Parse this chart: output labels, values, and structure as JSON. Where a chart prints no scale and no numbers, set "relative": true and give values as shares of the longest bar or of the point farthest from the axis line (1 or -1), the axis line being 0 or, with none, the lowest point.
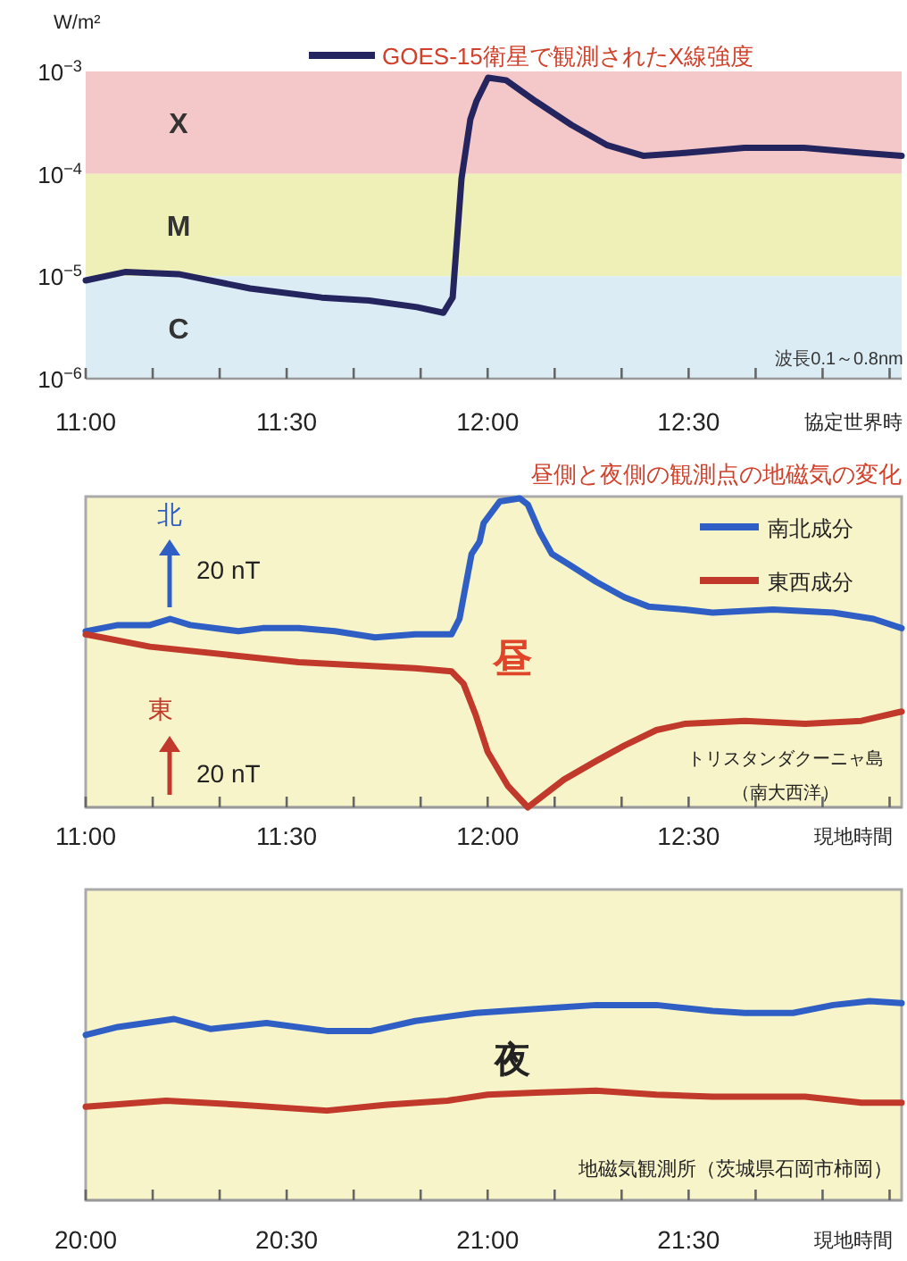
{
  "chart_data": [
    {
      "type": "line",
      "ylabel": "W/m²",
      "xlabel": "協定世界時",
      "log": true,
      "ylim": [
        1e-06,
        0.001
      ],
      "yticks": [
        {
          "value": 1e-06,
          "label": "10$^{−6}$"
        },
        {
          "value": 1e-05,
          "label": "10$^{−5}$"
        },
        {
          "value": 0.0001,
          "label": "10$^{−4}$"
        },
        {
          "value": 0.001,
          "label": "10$^{−3}$"
        }
      ],
      "xlim": [
        11,
        13.03
      ],
      "xticks": [
        {
          "value": 11,
          "label": "11:00"
        },
        {
          "value": 11.1667,
          "label": null
        },
        {
          "value": 11.3333,
          "label": null
        },
        {
          "value": 11.5,
          "label": "11:30"
        },
        {
          "value": 11.6667,
          "label": null
        },
        {
          "value": 11.8333,
          "label": null
        },
        {
          "value": 12,
          "label": "12:00"
        },
        {
          "value": 12.1667,
          "label": null
        },
        {
          "value": 12.3333,
          "label": null
        },
        {
          "value": 12.5,
          "label": "12:30"
        },
        {
          "value": 12.6667,
          "label": null
        },
        {
          "value": 12.8333,
          "label": null
        },
        {
          "value": 13,
          "label": null
        }
      ],
      "bands": [
        {
          "axis": "y",
          "from": 0.0001,
          "to": 0.001,
          "label": "X",
          "color": "#f4c8c8"
        },
        {
          "axis": "y",
          "from": 1e-05,
          "to": 0.0001,
          "label": "M",
          "color": "#eef0b8"
        },
        {
          "axis": "y",
          "from": 1e-06,
          "to": 1e-05,
          "label": "C",
          "color": "#dcecf4"
        }
      ],
      "legend": "top right",
      "grid": false,
      "marker": "none",
      "line_style": "solid",
      "annotations": [
        "波長0.1～0.8nm"
      ],
      "series": [
        {
          "name": "GOES-15衛星で観測されたX線強度",
          "color": "#24245e",
          "x": [
            11.0,
            11.098,
            11.231,
            11.409,
            11.587,
            11.705,
            11.824,
            11.89,
            11.913,
            11.935,
            11.957,
            11.972,
            12.001,
            12.046,
            12.12,
            12.209,
            12.298,
            12.387,
            12.49,
            12.639,
            12.787,
            12.935,
            13.03
          ],
          "values": [
            9.1e-06,
            1.1e-05,
            1.05e-05,
            7.6e-06,
            6.2e-06,
            5.8e-06,
            5e-06,
            4.4e-06,
            6.2e-06,
            9e-05,
            0.00034,
            0.00051,
            0.00087,
            0.00082,
            0.00051,
            0.0003,
            0.00019,
            0.00015,
            0.00016,
            0.00018,
            0.00018,
            0.00016,
            0.00015
          ]
        }
      ]
    },
    {
      "type": "line",
      "title": "昼側と夜側の観測点の地磁気の変化",
      "xlabel": "現地時間",
      "relative": true,
      "xlim": [
        11,
        13.03
      ],
      "xticks": [
        {
          "value": 11,
          "label": "11:00"
        },
        {
          "value": 11.1667,
          "label": null
        },
        {
          "value": 11.3333,
          "label": null
        },
        {
          "value": 11.5,
          "label": "11:30"
        },
        {
          "value": 11.6667,
          "label": null
        },
        {
          "value": 11.8333,
          "label": null
        },
        {
          "value": 12,
          "label": "12:00"
        },
        {
          "value": 12.1667,
          "label": null
        },
        {
          "value": 12.3333,
          "label": null
        },
        {
          "value": 12.5,
          "label": "12:30"
        },
        {
          "value": 12.6667,
          "label": null
        },
        {
          "value": 12.8333,
          "label": null
        },
        {
          "value": 13,
          "label": null
        }
      ],
      "legend": "top right",
      "grid": false,
      "marker": "none",
      "line_style": "solid",
      "annotations": [
        "北",
        "20 nT",
        "東",
        "20 nT",
        "昼",
        "トリスタンダクーニャ島",
        "（南大西洋）"
      ],
      "series": [
        {
          "name": "南北成分",
          "color": "#2f5fc4",
          "x": [
            11.0,
            11.08,
            11.16,
            11.21,
            11.26,
            11.38,
            11.44,
            11.53,
            11.62,
            11.72,
            11.82,
            11.91,
            11.93,
            11.96,
            11.98,
            11.99,
            12.03,
            12.08,
            12.1,
            12.13,
            12.16,
            12.21,
            12.27,
            12.34,
            12.4,
            12.49,
            12.56,
            12.71,
            12.86,
            12.96,
            13.03
          ],
          "values": [
            0.57,
            0.59,
            0.59,
            0.61,
            0.59,
            0.57,
            0.58,
            0.58,
            0.57,
            0.55,
            0.56,
            0.56,
            0.61,
            0.82,
            0.86,
            0.92,
            0.99,
            1.0,
            0.98,
            0.89,
            0.82,
            0.78,
            0.73,
            0.68,
            0.65,
            0.64,
            0.63,
            0.64,
            0.63,
            0.61,
            0.58
          ]
        },
        {
          "name": "東西成分",
          "color": "#c0392b",
          "x": [
            11.0,
            11.16,
            11.38,
            11.53,
            11.68,
            11.82,
            11.91,
            11.94,
            11.97,
            12.0,
            12.05,
            12.1,
            12.13,
            12.19,
            12.27,
            12.34,
            12.42,
            12.49,
            12.64,
            12.79,
            12.93,
            13.03
          ],
          "values": [
            0.56,
            0.52,
            0.49,
            0.47,
            0.46,
            0.45,
            0.44,
            0.4,
            0.3,
            0.18,
            0.07,
            0.0,
            0.03,
            0.09,
            0.15,
            0.2,
            0.25,
            0.27,
            0.28,
            0.27,
            0.28,
            0.31
          ]
        }
      ]
    },
    {
      "type": "line",
      "xlabel": "現地時間",
      "relative": true,
      "xlim": [
        20,
        22.03
      ],
      "xticks": [
        {
          "value": 20,
          "label": "20:00"
        },
        {
          "value": 20.1667,
          "label": null
        },
        {
          "value": 20.3333,
          "label": null
        },
        {
          "value": 20.5,
          "label": "20:30"
        },
        {
          "value": 20.6667,
          "label": null
        },
        {
          "value": 20.8333,
          "label": null
        },
        {
          "value": 21,
          "label": "21:00"
        },
        {
          "value": 21.1667,
          "label": null
        },
        {
          "value": 21.3333,
          "label": null
        },
        {
          "value": 21.5,
          "label": "21:30"
        },
        {
          "value": 21.6667,
          "label": null
        },
        {
          "value": 21.8333,
          "label": null
        },
        {
          "value": 22,
          "label": null
        }
      ],
      "grid": false,
      "marker": "none",
      "line_style": "solid",
      "annotations": [
        "夜",
        "地磁気観測所（茨城県石岡市柿岡）"
      ],
      "series": [
        {
          "color": "#2f5fc4",
          "x": [
            20.0,
            20.08,
            20.22,
            20.31,
            20.45,
            20.6,
            20.71,
            20.82,
            20.97,
            21.12,
            21.27,
            21.42,
            21.56,
            21.64,
            21.76,
            21.86,
            21.95,
            22.03
          ],
          "values": [
            0.83,
            0.87,
            0.91,
            0.86,
            0.89,
            0.85,
            0.85,
            0.9,
            0.94,
            0.96,
            0.98,
            0.98,
            0.95,
            0.94,
            0.94,
            0.98,
            1.0,
            0.99
          ]
        },
        {
          "color": "#c0392b",
          "x": [
            20.0,
            20.2,
            20.38,
            20.6,
            20.75,
            20.9,
            21.0,
            21.12,
            21.27,
            21.42,
            21.56,
            21.79,
            21.93,
            22.03
          ],
          "values": [
            0.47,
            0.5,
            0.48,
            0.45,
            0.48,
            0.5,
            0.53,
            0.54,
            0.55,
            0.53,
            0.52,
            0.52,
            0.49,
            0.49
          ]
        }
      ]
    }
  ]
}
